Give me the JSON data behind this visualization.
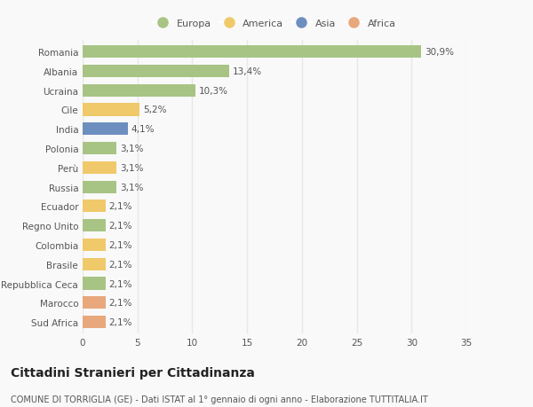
{
  "categories": [
    "Romania",
    "Albania",
    "Ucraina",
    "Cile",
    "India",
    "Polonia",
    "Perù",
    "Russia",
    "Ecuador",
    "Regno Unito",
    "Colombia",
    "Brasile",
    "Repubblica Ceca",
    "Marocco",
    "Sud Africa"
  ],
  "values": [
    30.9,
    13.4,
    10.3,
    5.2,
    4.1,
    3.1,
    3.1,
    3.1,
    2.1,
    2.1,
    2.1,
    2.1,
    2.1,
    2.1,
    2.1
  ],
  "labels": [
    "30,9%",
    "13,4%",
    "10,3%",
    "5,2%",
    "4,1%",
    "3,1%",
    "3,1%",
    "3,1%",
    "2,1%",
    "2,1%",
    "2,1%",
    "2,1%",
    "2,1%",
    "2,1%",
    "2,1%"
  ],
  "continents": [
    "Europa",
    "Europa",
    "Europa",
    "America",
    "Asia",
    "Europa",
    "America",
    "Europa",
    "America",
    "Europa",
    "America",
    "America",
    "Europa",
    "Africa",
    "Africa"
  ],
  "continent_colors": {
    "Europa": "#a8c484",
    "America": "#f0c96a",
    "Asia": "#6d8fbf",
    "Africa": "#e8a87c"
  },
  "legend_order": [
    "Europa",
    "America",
    "Asia",
    "Africa"
  ],
  "title": "Cittadini Stranieri per Cittadinanza",
  "subtitle": "COMUNE DI TORRIGLIA (GE) - Dati ISTAT al 1° gennaio di ogni anno - Elaborazione TUTTITALIA.IT",
  "xlim": [
    0,
    35
  ],
  "xticks": [
    0,
    5,
    10,
    15,
    20,
    25,
    30,
    35
  ],
  "background_color": "#f9f9f9",
  "grid_color": "#e8e8e8",
  "bar_height": 0.65,
  "label_fontsize": 7.5,
  "tick_fontsize": 7.5,
  "title_fontsize": 10,
  "subtitle_fontsize": 7
}
